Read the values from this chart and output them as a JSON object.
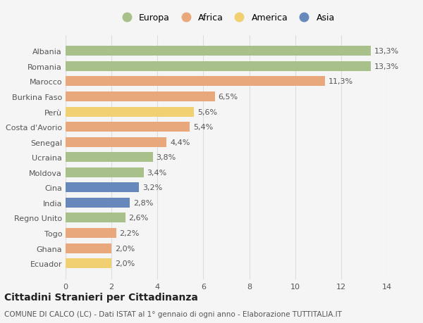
{
  "categories": [
    "Albania",
    "Romania",
    "Marocco",
    "Burkina Faso",
    "Perù",
    "Costa d'Avorio",
    "Senegal",
    "Ucraina",
    "Moldova",
    "Cina",
    "India",
    "Regno Unito",
    "Togo",
    "Ghana",
    "Ecuador"
  ],
  "values": [
    13.3,
    13.3,
    11.3,
    6.5,
    5.6,
    5.4,
    4.4,
    3.8,
    3.4,
    3.2,
    2.8,
    2.6,
    2.2,
    2.0,
    2.0
  ],
  "labels": [
    "13,3%",
    "13,3%",
    "11,3%",
    "6,5%",
    "5,6%",
    "5,4%",
    "4,4%",
    "3,8%",
    "3,4%",
    "3,2%",
    "2,8%",
    "2,6%",
    "2,2%",
    "2,0%",
    "2,0%"
  ],
  "continents": [
    "Europa",
    "Europa",
    "Africa",
    "Africa",
    "America",
    "Africa",
    "Africa",
    "Europa",
    "Europa",
    "Asia",
    "Asia",
    "Europa",
    "Africa",
    "Africa",
    "America"
  ],
  "continent_colors": {
    "Europa": "#a8c08a",
    "Africa": "#e8a87c",
    "America": "#f0d070",
    "Asia": "#6688bb"
  },
  "legend_order": [
    "Europa",
    "Africa",
    "America",
    "Asia"
  ],
  "title": "Cittadini Stranieri per Cittadinanza",
  "subtitle": "COMUNE DI CALCO (LC) - Dati ISTAT al 1° gennaio di ogni anno - Elaborazione TUTTITALIA.IT",
  "xlim": [
    0,
    14
  ],
  "xticks": [
    0,
    2,
    4,
    6,
    8,
    10,
    12,
    14
  ],
  "background_color": "#f5f5f5",
  "grid_color": "#dddddd",
  "bar_height": 0.65,
  "label_fontsize": 8,
  "tick_fontsize": 8,
  "title_fontsize": 10,
  "subtitle_fontsize": 7.5,
  "legend_fontsize": 9
}
